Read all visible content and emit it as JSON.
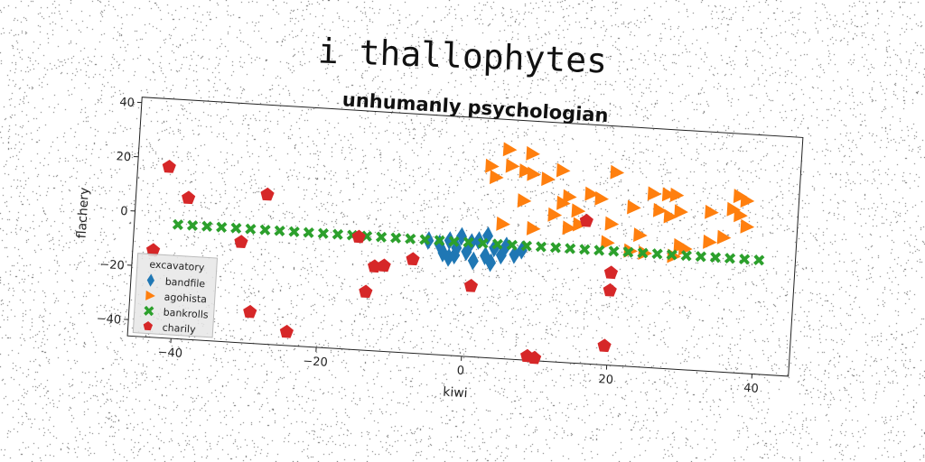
{
  "figure": {
    "suptitle": "i thallophytes"
  },
  "chart_data": {
    "type": "scatter",
    "title": "unhumanly psychologian",
    "xlabel": "kiwi",
    "ylabel": "flachery",
    "xlim": [
      -46,
      45
    ],
    "ylim": [
      -46,
      42
    ],
    "xticks": [
      -40,
      -20,
      0,
      20,
      40
    ],
    "xtick_labels": [
      "−40",
      "−20",
      "0",
      "20",
      "40"
    ],
    "yticks": [
      40,
      20,
      0,
      -20,
      -40
    ],
    "ytick_labels": [
      "40",
      "20",
      "0",
      "−20",
      "−40"
    ],
    "grid": false,
    "legend": {
      "title": "excavatory",
      "position": "lower-left"
    },
    "series": [
      {
        "name": "bandfile",
        "marker": "diamond",
        "color": "#1f77b4",
        "points": [
          [
            -5.5,
            -4.2
          ],
          [
            -4,
            -5.2
          ],
          [
            -3.4,
            -8.5
          ],
          [
            -2.6,
            -10
          ],
          [
            -2.6,
            -3.8
          ],
          [
            -1.8,
            -9
          ],
          [
            -1.6,
            -6.3
          ],
          [
            -1,
            -2
          ],
          [
            -0.2,
            -7.5
          ],
          [
            0.4,
            -4
          ],
          [
            0.8,
            -10.7
          ],
          [
            1.4,
            -3.1
          ],
          [
            2.4,
            -8.6
          ],
          [
            2.6,
            -1.2
          ],
          [
            3.2,
            -11
          ],
          [
            3.6,
            -5.5
          ],
          [
            4.6,
            -8
          ],
          [
            5.2,
            -4.5
          ],
          [
            6.4,
            -7.5
          ],
          [
            7.4,
            -5.7
          ]
        ]
      },
      {
        "name": "agohista",
        "marker": "triangle-right",
        "color": "#ff7f0e",
        "points": [
          [
            2.5,
            24.5
          ],
          [
            3.2,
            20.5
          ],
          [
            4.8,
            31
          ],
          [
            5.3,
            25
          ],
          [
            7.2,
            23.5
          ],
          [
            8,
            30
          ],
          [
            8.3,
            22.5
          ],
          [
            10.3,
            21
          ],
          [
            12.3,
            24.5
          ],
          [
            4.5,
            3.5
          ],
          [
            7.2,
            12.5
          ],
          [
            8.7,
            2.5
          ],
          [
            11.5,
            8
          ],
          [
            12.6,
            12.5
          ],
          [
            13.4,
            15
          ],
          [
            13.6,
            3.5
          ],
          [
            14.7,
            10
          ],
          [
            15,
            5
          ],
          [
            16.4,
            16.5
          ],
          [
            17.8,
            15
          ],
          [
            19.7,
            25
          ],
          [
            19.4,
            6
          ],
          [
            19,
            -1
          ],
          [
            22.3,
            12.5
          ],
          [
            22.2,
            -3.5
          ],
          [
            23.4,
            2.5
          ],
          [
            24.2,
            -4
          ],
          [
            25,
            18
          ],
          [
            25.9,
            12
          ],
          [
            27,
            18
          ],
          [
            27.4,
            10
          ],
          [
            28.1,
            18
          ],
          [
            28.2,
            -4.5
          ],
          [
            28.8,
            12
          ],
          [
            29,
            -0.5
          ],
          [
            29.7,
            -1.5
          ],
          [
            33,
            12.5
          ],
          [
            33,
            1.5
          ],
          [
            34.9,
            3.5
          ],
          [
            36,
            14
          ],
          [
            36.8,
            19
          ],
          [
            37,
            12
          ],
          [
            37.8,
            17.5
          ],
          [
            38,
            8
          ]
        ]
      },
      {
        "name": "bankrolls",
        "marker": "x",
        "color": "#2ca02c",
        "points": [
          [
            -40,
            -4
          ],
          [
            -38,
            -4
          ],
          [
            -36,
            -4
          ],
          [
            -34,
            -4
          ],
          [
            -32,
            -4
          ],
          [
            -30,
            -4
          ],
          [
            -28,
            -4
          ],
          [
            -26,
            -4
          ],
          [
            -24,
            -4
          ],
          [
            -22,
            -4
          ],
          [
            -20,
            -4
          ],
          [
            -18,
            -4
          ],
          [
            -16,
            -4
          ],
          [
            -14,
            -4
          ],
          [
            -12,
            -4
          ],
          [
            -10,
            -4
          ],
          [
            -8,
            -4
          ],
          [
            -6,
            -4
          ],
          [
            -4,
            -4
          ],
          [
            -2,
            -4
          ],
          [
            0,
            -4
          ],
          [
            2,
            -4
          ],
          [
            4,
            -4
          ],
          [
            6,
            -4
          ],
          [
            8,
            -4
          ],
          [
            10,
            -4
          ],
          [
            12,
            -4
          ],
          [
            14,
            -4
          ],
          [
            16,
            -4
          ],
          [
            18,
            -4
          ],
          [
            20,
            -4
          ],
          [
            22,
            -4
          ],
          [
            24,
            -4
          ],
          [
            26,
            -4
          ],
          [
            28,
            -4
          ],
          [
            30,
            -4
          ],
          [
            32,
            -4
          ],
          [
            34,
            -4
          ],
          [
            36,
            -4
          ],
          [
            38,
            -4
          ],
          [
            40,
            -4
          ]
        ]
      },
      {
        "name": "charily",
        "marker": "pentagon",
        "color": "#d62728",
        "points": [
          [
            -41.7,
            17
          ],
          [
            -38.8,
            6
          ],
          [
            -31.2,
            -9
          ],
          [
            -28,
            9
          ],
          [
            -43.2,
            -14
          ],
          [
            -29.4,
            -34.5
          ],
          [
            -24.2,
            -41
          ],
          [
            -15.1,
            -4.5
          ],
          [
            -13.7,
            -24.5
          ],
          [
            -12.7,
            -15
          ],
          [
            -11.4,
            -14.5
          ],
          [
            -7.5,
            -11.5
          ],
          [
            0.7,
            -20
          ],
          [
            9,
            -44.5
          ],
          [
            10,
            -45
          ],
          [
            16,
            6.5
          ],
          [
            19.8,
            -12
          ],
          [
            19.8,
            -18.5
          ],
          [
            19.5,
            -39
          ]
        ]
      }
    ]
  }
}
